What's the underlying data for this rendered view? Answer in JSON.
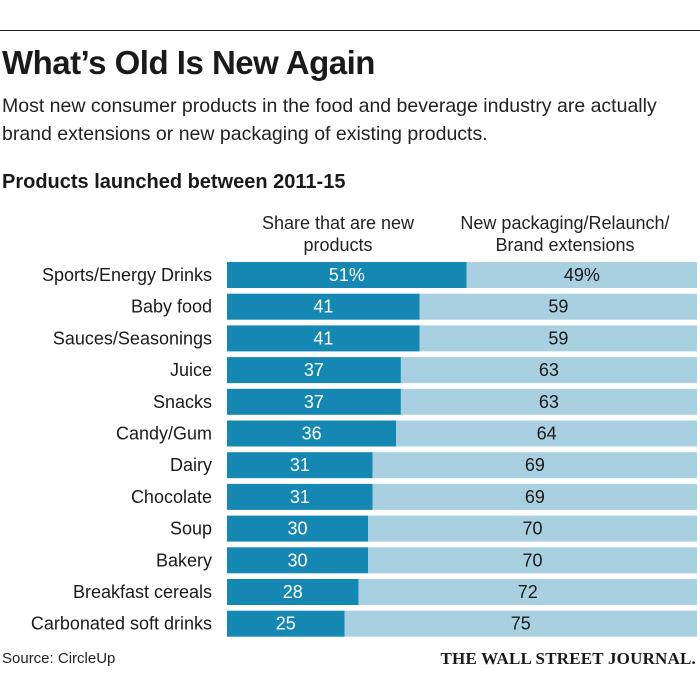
{
  "header": {
    "title": "What’s Old Is New Again",
    "subtitle": "Most new consumer products in the food and beverage industry are actually brand extensions or new packaging of existing products.",
    "section_title": "Products launched between 2011-15"
  },
  "footer": {
    "source": "Source: CircleUp",
    "publisher": "THE WALL STREET JOURNAL."
  },
  "colors": {
    "new_products": "#1587b3",
    "relaunch": "#a9d0e1",
    "text_on_dark": "#ffffff",
    "text_on_light": "#1a1a1a"
  },
  "chart_data": {
    "type": "bar",
    "orientation": "horizontal",
    "stacked": true,
    "categories": [
      "Sports/Energy Drinks",
      "Baby food",
      "Sauces/Seasonings",
      "Juice",
      "Snacks",
      "Candy/Gum",
      "Dairy",
      "Chocolate",
      "Soup",
      "Bakery",
      "Breakfast cereals",
      "Carbonated soft drinks"
    ],
    "series": [
      {
        "name": "Share that are new products",
        "values": [
          51,
          41,
          41,
          37,
          37,
          36,
          31,
          31,
          30,
          30,
          28,
          25
        ]
      },
      {
        "name": "New packaging/Relaunch/ Brand extensions",
        "values": [
          49,
          59,
          59,
          63,
          63,
          64,
          69,
          69,
          70,
          70,
          72,
          75
        ]
      }
    ],
    "data_labels": [
      [
        "51%",
        "41",
        "41",
        "37",
        "37",
        "36",
        "31",
        "31",
        "30",
        "30",
        "28",
        "25"
      ],
      [
        "49%",
        "59",
        "59",
        "63",
        "63",
        "64",
        "69",
        "69",
        "70",
        "70",
        "72",
        "75"
      ]
    ],
    "xlim": [
      0,
      100
    ],
    "grid": false,
    "legend": "column headers above bars"
  }
}
